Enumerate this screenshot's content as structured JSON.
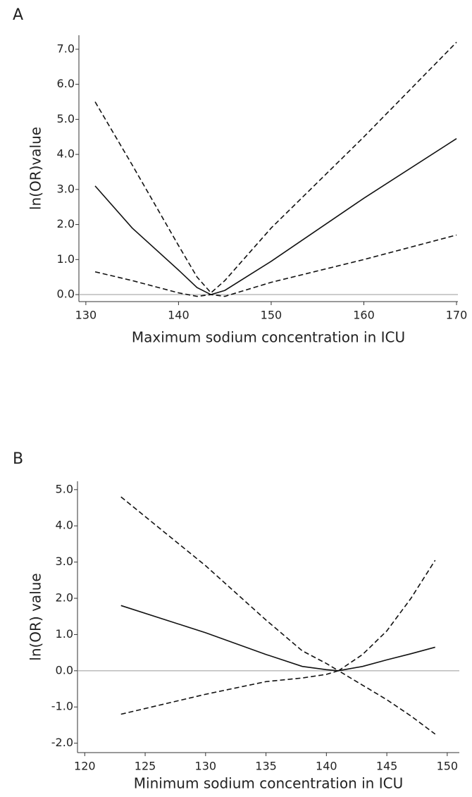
{
  "chart_data": [
    {
      "type": "line",
      "panel": "A",
      "xlabel": "Maximum sodium concentration in ICU",
      "ylabel": "ln(OR)value",
      "x": [
        131,
        135,
        140,
        142,
        143.5,
        145,
        150,
        160,
        170
      ],
      "series": [
        {
          "color": "#111111",
          "dash": false,
          "values": [
            3.1,
            1.9,
            0.7,
            0.2,
            0,
            0.12,
            0.95,
            2.75,
            4.45
          ]
        },
        {
          "color": "#111111",
          "dash": true,
          "values": [
            5.5,
            3.7,
            1.4,
            0.5,
            0.05,
            0.4,
            1.9,
            4.5,
            7.2
          ]
        },
        {
          "color": "#111111",
          "dash": true,
          "values": [
            0.65,
            0.4,
            0.05,
            -0.05,
            0,
            -0.05,
            0.35,
            1.0,
            1.7
          ]
        }
      ],
      "xlim": [
        129.25,
        170.15
      ],
      "xticks": [
        130,
        140,
        150,
        160,
        170
      ],
      "ylim": [
        -0.2,
        7.4
      ],
      "yticks": [
        {
          "value": 0,
          "label": "0.0"
        },
        {
          "value": 1,
          "label": "1.0"
        },
        {
          "value": 2,
          "label": "2.0"
        },
        {
          "value": 3,
          "label": "3.0"
        },
        {
          "value": 4,
          "label": "4.0"
        },
        {
          "value": 5,
          "label": "5.0"
        },
        {
          "value": 6,
          "label": "6.0"
        },
        {
          "value": 7,
          "label": "7.0"
        }
      ],
      "reference_line": 0
    },
    {
      "type": "line",
      "panel": "B",
      "xlabel": "Minimum sodium concentration in ICU",
      "ylabel": "ln(OR) value",
      "x": [
        123,
        130,
        135,
        138,
        140,
        141,
        143,
        145,
        147,
        149
      ],
      "series": [
        {
          "color": "#111111",
          "dash": false,
          "values": [
            1.8,
            1.05,
            0.45,
            0.12,
            0.03,
            0,
            0.12,
            0.3,
            0.47,
            0.65
          ]
        },
        {
          "color": "#111111",
          "dash": true,
          "values": [
            4.8,
            2.9,
            1.4,
            0.55,
            0.2,
            0,
            0.45,
            1.1,
            2.0,
            3.05
          ]
        },
        {
          "color": "#111111",
          "dash": true,
          "values": [
            -1.2,
            -0.65,
            -0.3,
            -0.2,
            -0.1,
            0,
            -0.4,
            -0.8,
            -1.25,
            -1.75
          ]
        }
      ],
      "xlim": [
        119.4,
        151
      ],
      "xticks": [
        120,
        125,
        130,
        135,
        140,
        145,
        150
      ],
      "ylim": [
        -2.26,
        5.23
      ],
      "yticks": [
        {
          "value": -2,
          "label": "-2.0"
        },
        {
          "value": -1,
          "label": "-1.0"
        },
        {
          "value": 0,
          "label": "0.0"
        },
        {
          "value": 1,
          "label": "1.0"
        },
        {
          "value": 2,
          "label": "2.0"
        },
        {
          "value": 3,
          "label": "3.0"
        },
        {
          "value": 4,
          "label": "4.0"
        },
        {
          "value": 5,
          "label": "5.0"
        }
      ],
      "reference_line": 0
    }
  ]
}
